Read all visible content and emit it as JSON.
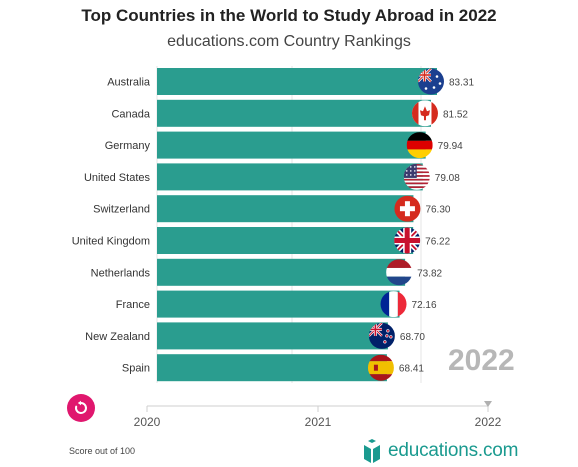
{
  "header": {
    "title": "Top Countries in the World to Study Abroad in 2022",
    "subtitle": "educations.com Country Rankings"
  },
  "chart_data": {
    "type": "bar",
    "orientation": "horizontal",
    "categories": [
      "Australia",
      "Canada",
      "Germany",
      "United States",
      "Switzerland",
      "United Kingdom",
      "Netherlands",
      "France",
      "New Zealand",
      "Spain"
    ],
    "values": [
      83.31,
      81.52,
      79.94,
      79.08,
      76.3,
      76.22,
      73.82,
      72.16,
      68.7,
      68.41
    ],
    "value_labels": [
      "83.31",
      "81.52",
      "79.94",
      "79.08",
      "76.30",
      "76.22",
      "73.82",
      "72.16",
      "68.70",
      "68.41"
    ],
    "flags": [
      "australia-flag",
      "canada-flag",
      "germany-flag",
      "united-states-flag",
      "switzerland-flag",
      "united-kingdom-flag",
      "netherlands-flag",
      "france-flag",
      "new-zealand-flag",
      "spain-flag"
    ],
    "bar_color": "#2a9d8f",
    "timeline_ticks": [
      "2020",
      "2021",
      "2022"
    ],
    "current_year": "2022",
    "grid": true
  },
  "controls": {
    "replay_icon": "replay-icon",
    "replay_color": "#e0176e"
  },
  "footer": {
    "note": "Score out of 100",
    "logo_text": "educations.com",
    "logo_color": "#1a9a8f"
  }
}
